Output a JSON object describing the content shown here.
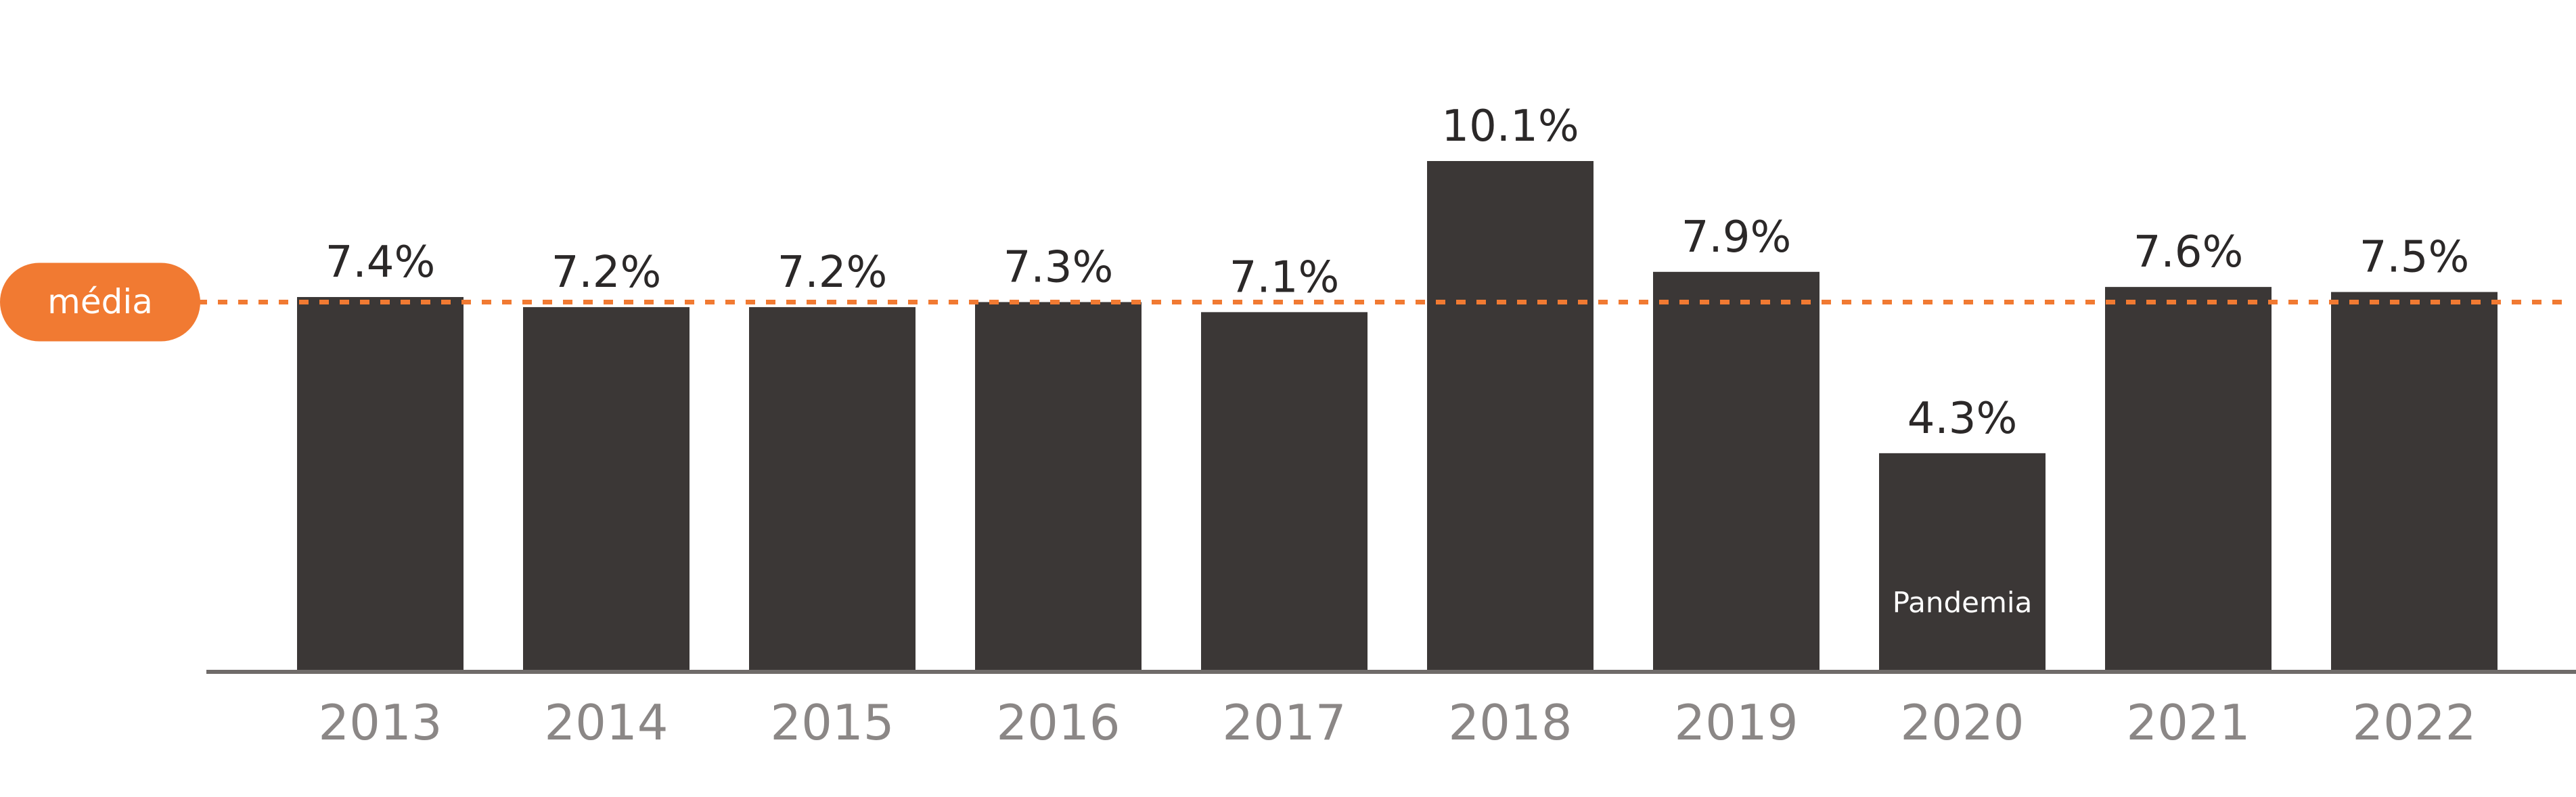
{
  "chart_data": {
    "type": "bar",
    "categories": [
      "2013",
      "2014",
      "2015",
      "2016",
      "2017",
      "2018",
      "2019",
      "2020",
      "2021",
      "2022"
    ],
    "values": [
      7.4,
      7.2,
      7.2,
      7.3,
      7.1,
      10.1,
      7.9,
      4.3,
      7.6,
      7.5
    ],
    "value_labels": [
      "7.4%",
      "7.2%",
      "7.2%",
      "7.3%",
      "7.1%",
      "10.1%",
      "7.9%",
      "4.3%",
      "7.6%",
      "7.5%"
    ],
    "ylim": [
      0,
      10.1
    ],
    "reference_line": {
      "label": "média",
      "value": 7.3
    },
    "annotations": [
      {
        "category": "2020",
        "text": "Pandemia"
      }
    ],
    "colors": {
      "bar": "#3b3736",
      "axis": "#6f6b69",
      "reference": "#f17a32",
      "value_text": "#2b2828",
      "tick_text": "#8b8786",
      "annotation_text": "#ffffff"
    }
  }
}
